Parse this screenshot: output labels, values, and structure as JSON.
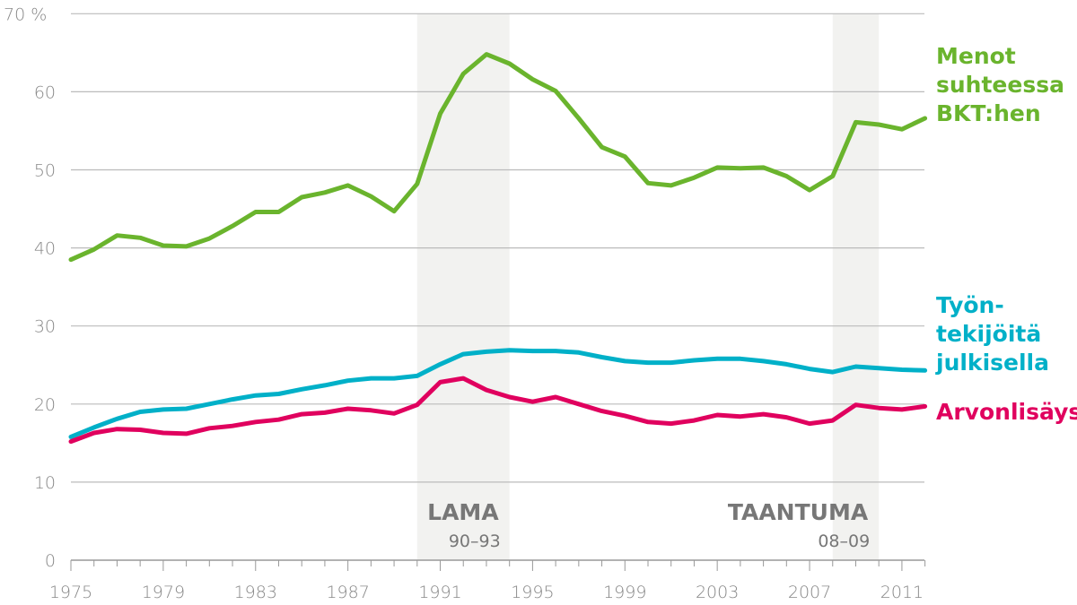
{
  "chart_data": {
    "type": "line",
    "ylim": [
      0,
      70
    ],
    "y_ticks": [
      "0",
      "10",
      "20",
      "30",
      "40",
      "50",
      "60",
      "70 %"
    ],
    "y_tick_values": [
      0,
      10,
      20,
      30,
      40,
      50,
      60,
      70
    ],
    "x_range": [
      1975,
      2012
    ],
    "x_ticks": [
      "1975",
      "1979",
      "1983",
      "1987",
      "1991",
      "1995",
      "1999",
      "2003",
      "2007",
      "2011"
    ],
    "x_tick_values": [
      1975,
      1979,
      1983,
      1987,
      1991,
      1995,
      1999,
      2003,
      2007,
      2011
    ],
    "grid": true,
    "x": [
      1975,
      1976,
      1977,
      1978,
      1979,
      1980,
      1981,
      1982,
      1983,
      1984,
      1985,
      1986,
      1987,
      1988,
      1989,
      1990,
      1991,
      1992,
      1993,
      1994,
      1995,
      1996,
      1997,
      1998,
      1999,
      2000,
      2001,
      2002,
      2003,
      2004,
      2005,
      2006,
      2007,
      2008,
      2009,
      2010,
      2011,
      2012
    ],
    "series": [
      {
        "name": "Menot suhteessa BKT:hen",
        "label_lines": [
          "Menot",
          "suhteessa",
          "BKT:hen"
        ],
        "color": "#6ab42d",
        "values": [
          38.5,
          39.8,
          41.6,
          41.3,
          40.3,
          40.2,
          41.2,
          42.8,
          44.6,
          44.6,
          46.5,
          47.1,
          48.0,
          46.6,
          44.7,
          48.2,
          57.2,
          62.3,
          64.8,
          63.6,
          61.6,
          60.1,
          56.6,
          52.9,
          51.7,
          48.3,
          48.0,
          49.0,
          50.3,
          50.2,
          50.3,
          49.2,
          47.4,
          49.2,
          56.1,
          55.8,
          55.2,
          56.6
        ]
      },
      {
        "name": "Työn-tekijöitä julkisella",
        "label_lines": [
          "Työn-",
          "tekijöitä",
          "julkisella"
        ],
        "color": "#00b0c8",
        "values": [
          15.8,
          17.0,
          18.1,
          19.0,
          19.3,
          19.4,
          20.0,
          20.6,
          21.1,
          21.3,
          21.9,
          22.4,
          23.0,
          23.3,
          23.3,
          23.6,
          25.1,
          26.4,
          26.7,
          26.9,
          26.8,
          26.8,
          26.6,
          26.0,
          25.5,
          25.3,
          25.3,
          25.6,
          25.8,
          25.8,
          25.5,
          25.1,
          24.5,
          24.1,
          24.8,
          24.6,
          24.4,
          24.3
        ]
      },
      {
        "name": "Arvonlisäys",
        "label_lines": [
          "Arvonlisäys"
        ],
        "color": "#e0005e",
        "values": [
          15.2,
          16.3,
          16.8,
          16.7,
          16.3,
          16.2,
          16.9,
          17.2,
          17.7,
          18.0,
          18.7,
          18.9,
          19.4,
          19.2,
          18.8,
          19.9,
          22.8,
          23.3,
          21.8,
          20.9,
          20.3,
          20.9,
          20.0,
          19.1,
          18.5,
          17.7,
          17.5,
          17.9,
          18.6,
          18.4,
          18.7,
          18.3,
          17.5,
          17.9,
          19.9,
          19.5,
          19.3,
          19.7
        ]
      }
    ],
    "shaded_periods": [
      {
        "title": "LAMA",
        "subtitle": "90–93",
        "from": 1990,
        "to": 1994
      },
      {
        "title": "TAANTUMA",
        "subtitle": "08–09",
        "from": 2008,
        "to": 2010
      }
    ],
    "shade_color": "#f2f2f0"
  }
}
